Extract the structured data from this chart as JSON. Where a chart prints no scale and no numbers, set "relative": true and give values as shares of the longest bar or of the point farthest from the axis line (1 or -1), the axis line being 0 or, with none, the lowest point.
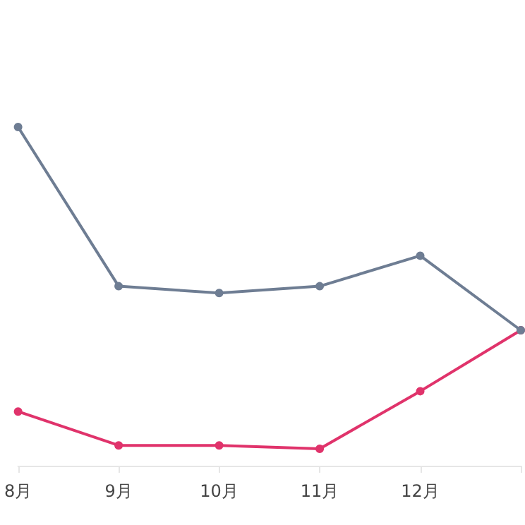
{
  "chart_data": {
    "type": "line",
    "relative": true,
    "categories": [
      "8月",
      "9月",
      "10月",
      "11月",
      "12月",
      null
    ],
    "series": [
      {
        "color": "#6e7d93",
        "values": [
          1,
          0.53,
          0.51,
          0.53,
          0.62,
          0.4
        ]
      },
      {
        "color": "#e0336b",
        "values": [
          0.16,
          0.06,
          0.06,
          0.05,
          0.22,
          0.4
        ]
      }
    ],
    "marker": "circle",
    "line_style": "solid"
  }
}
